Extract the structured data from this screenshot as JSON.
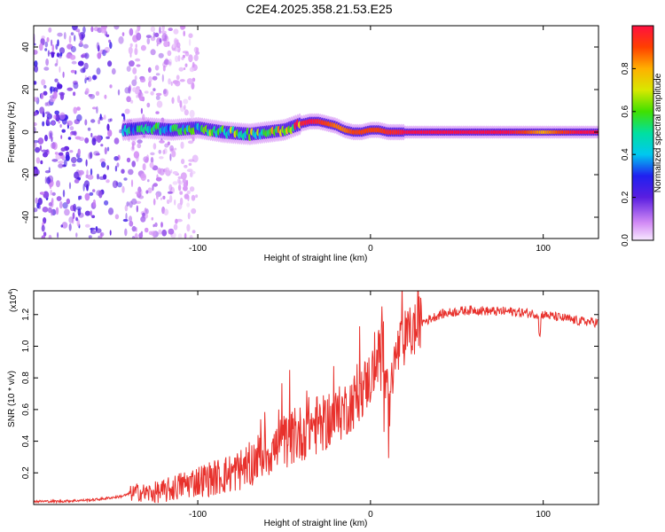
{
  "title": "C2E4.2025.358.21.53.E25",
  "colors": {
    "trace": "#e8312c",
    "scatter_dark": "#5a1ee0",
    "scatter_light": "#c9a8f5",
    "background": "#ffffff"
  },
  "chart_data": [
    {
      "id": "spectrogram",
      "type": "heatmap",
      "xlabel": "Height of straight line (km)",
      "ylabel": "Frequency (Hz)",
      "xlim": [
        -195,
        132
      ],
      "ylim": [
        -50,
        50
      ],
      "xticks": [
        -100,
        0,
        100
      ],
      "yticks": [
        -40,
        -20,
        0,
        20,
        40
      ],
      "colorbar": {
        "label": "Normalized spectral amplitude",
        "range": [
          0,
          1
        ],
        "ticks": [
          "0.0",
          "0.2",
          "0.4",
          "0.6",
          "0.8"
        ]
      },
      "ridge": {
        "x": [
          -143,
          -130,
          -115,
          -100,
          -85,
          -70,
          -60,
          -50,
          -40,
          -35,
          -30,
          -25,
          -20,
          -15,
          -10,
          -5,
          0,
          5,
          10,
          15,
          20,
          40,
          60,
          80,
          100,
          120,
          132
        ],
        "freq": [
          1,
          2,
          1,
          2,
          0,
          -1,
          0,
          1,
          4,
          5,
          5,
          4,
          3,
          1,
          0,
          0,
          1,
          1,
          0,
          0,
          0,
          0,
          0,
          0,
          0,
          0,
          0
        ],
        "amplitude": [
          0.45,
          0.5,
          0.5,
          0.55,
          0.6,
          0.6,
          0.65,
          0.8,
          0.95,
          1.0,
          0.95,
          0.9,
          0.85,
          0.85,
          0.9,
          0.9,
          0.9,
          0.9,
          0.95,
          0.95,
          1.0,
          1.0,
          1.0,
          1.0,
          0.8,
          1.0,
          1.0
        ]
      },
      "noise_region": {
        "x": [
          -195,
          -100
        ],
        "amplitude": 0.2
      }
    },
    {
      "id": "snr",
      "type": "line",
      "xlabel": "Height of straight line (km)",
      "ylabel": "SNR (10 * v/v)",
      "multiplier_label": "(x10",
      "multiplier_exponent": "4",
      "xlim": [
        -195,
        132
      ],
      "ylim": [
        0,
        1.35
      ],
      "xticks": [
        -100,
        0,
        100
      ],
      "yticks": [
        0.2,
        0.4,
        0.6,
        0.8,
        1.0,
        1.2
      ],
      "series": [
        {
          "name": "SNR",
          "x": [
            -195,
            -180,
            -160,
            -145,
            -135,
            -130,
            -120,
            -110,
            -100,
            -90,
            -80,
            -70,
            -65,
            -60,
            -55,
            -50,
            -45,
            -40,
            -35,
            -30,
            -25,
            -20,
            -15,
            -10,
            -5,
            0,
            5,
            8,
            10,
            12,
            15,
            20,
            25,
            30,
            40,
            50,
            60,
            70,
            80,
            90,
            100,
            110,
            120,
            132
          ],
          "y": [
            0.02,
            0.02,
            0.03,
            0.05,
            0.08,
            0.07,
            0.08,
            0.12,
            0.15,
            0.17,
            0.2,
            0.25,
            0.3,
            0.33,
            0.35,
            0.4,
            0.42,
            0.45,
            0.5,
            0.5,
            0.52,
            0.55,
            0.6,
            0.65,
            0.72,
            0.8,
            0.95,
            1.02,
            0.9,
            0.75,
            0.95,
            1.05,
            1.1,
            1.15,
            1.2,
            1.22,
            1.23,
            1.22,
            1.22,
            1.21,
            1.2,
            1.18,
            1.16,
            1.15
          ]
        }
      ]
    }
  ]
}
